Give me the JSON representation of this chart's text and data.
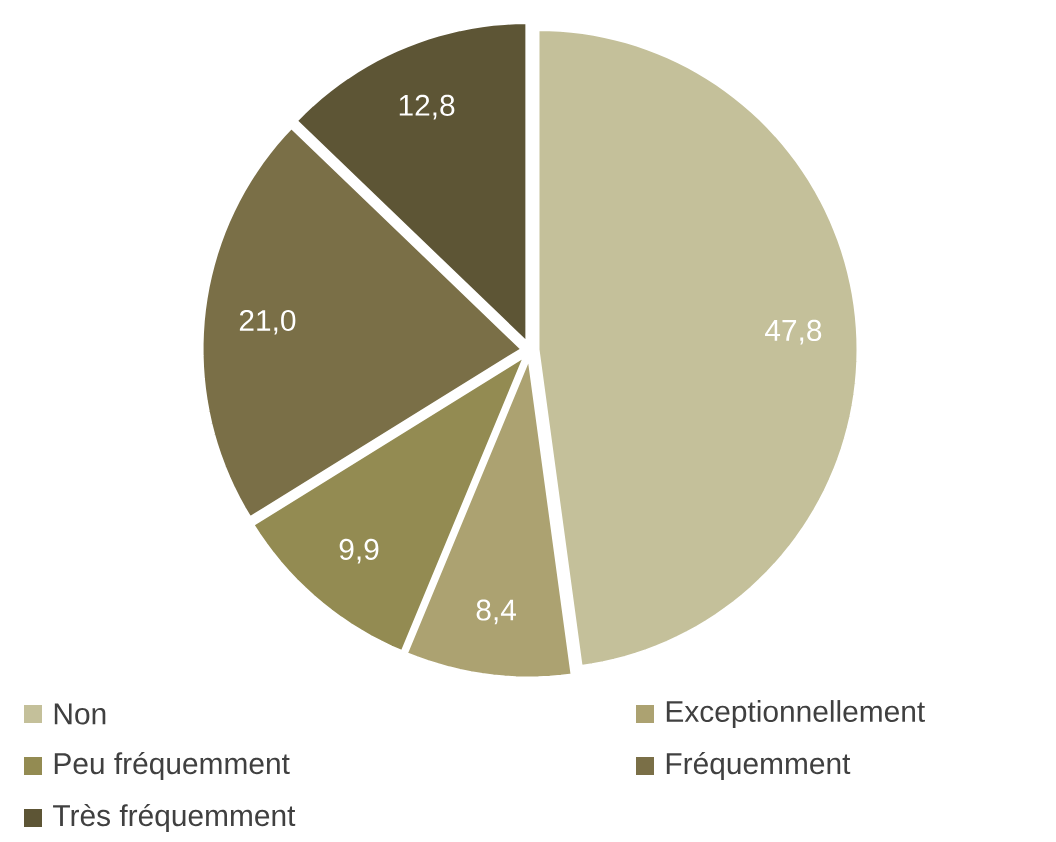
{
  "chart_data": {
    "type": "pie",
    "categories": [
      "Non",
      "Exceptionnellement",
      "Peu fréquemment",
      "Fréquemment",
      "Très fréquemment"
    ],
    "values": [
      47.8,
      8.4,
      9.9,
      21.0,
      12.8
    ],
    "value_labels": [
      "47,8",
      "8,4",
      "9,9",
      "21,0",
      "12,8"
    ],
    "colors": [
      "#c4c09a",
      "#aca271",
      "#938b52",
      "#7a6f47",
      "#5d5535"
    ],
    "legend": "bottom"
  }
}
